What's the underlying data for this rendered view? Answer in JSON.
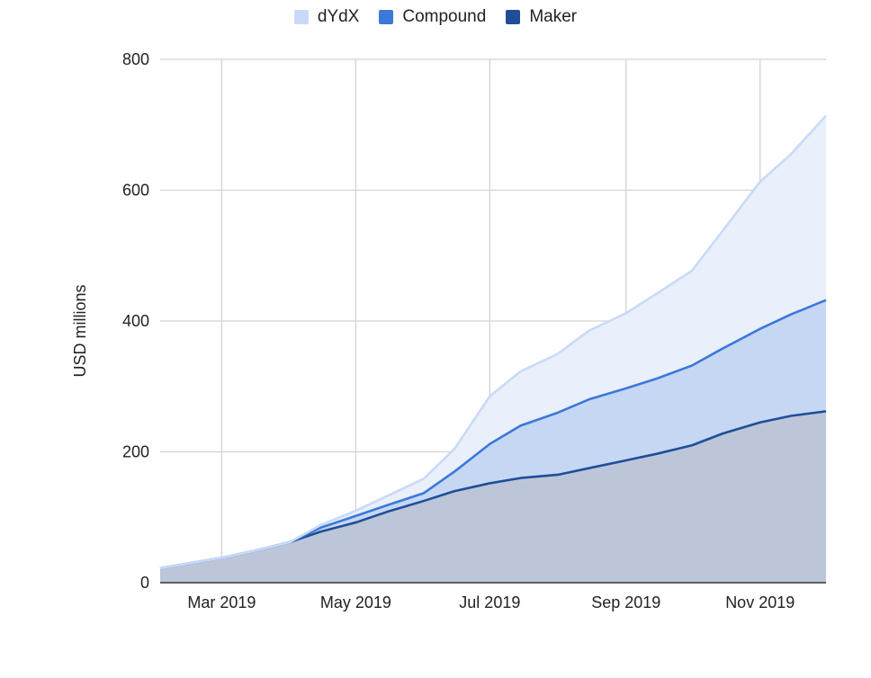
{
  "chart_data": {
    "type": "area",
    "stacked": true,
    "title": "",
    "xlabel": "",
    "ylabel": "USD millions",
    "ylim": [
      0,
      800
    ],
    "yticks": [
      0,
      200,
      400,
      600,
      800
    ],
    "grid": true,
    "legend_position": "top-center",
    "x_ticks": [
      {
        "label": "Mar 2019",
        "date": "2019-03-01"
      },
      {
        "label": "May 2019",
        "date": "2019-05-01"
      },
      {
        "label": "Jul 2019",
        "date": "2019-07-01"
      },
      {
        "label": "Sep 2019",
        "date": "2019-09-01"
      },
      {
        "label": "Nov 2019",
        "date": "2019-11-01"
      }
    ],
    "x_range": [
      "2019-02-01",
      "2019-12-01"
    ],
    "x": [
      "2019-02-01",
      "2019-02-15",
      "2019-03-01",
      "2019-03-15",
      "2019-04-01",
      "2019-04-15",
      "2019-05-01",
      "2019-05-15",
      "2019-06-01",
      "2019-06-15",
      "2019-07-01",
      "2019-07-15",
      "2019-08-01",
      "2019-08-15",
      "2019-09-01",
      "2019-09-15",
      "2019-10-01",
      "2019-10-15",
      "2019-11-01",
      "2019-11-15",
      "2019-12-01"
    ],
    "series": [
      {
        "name": "Maker",
        "color": "#1f4e99",
        "fill": "#bcc6d8",
        "values": [
          22,
          30,
          38,
          48,
          62,
          78,
          92,
          108,
          125,
          140,
          152,
          160,
          165,
          175,
          187,
          197,
          210,
          228,
          245,
          255,
          262
        ]
      },
      {
        "name": "Compound",
        "color": "#3c78d8",
        "fill": "#c5d7f3",
        "values": [
          0,
          0,
          0,
          0,
          0,
          6,
          10,
          10,
          12,
          30,
          60,
          80,
          95,
          105,
          110,
          115,
          122,
          130,
          143,
          155,
          170
        ]
      },
      {
        "name": "dYdX",
        "color": "#c9daf8",
        "fill": "#e9effb",
        "values": [
          0,
          0,
          0,
          0,
          0,
          4,
          8,
          14,
          22,
          35,
          73,
          83,
          90,
          105,
          115,
          130,
          145,
          180,
          225,
          245,
          282
        ]
      }
    ]
  },
  "legend": {
    "items": [
      {
        "label": "dYdX",
        "color": "#c9daf8"
      },
      {
        "label": "Compound",
        "color": "#3c78d8"
      },
      {
        "label": "Maker",
        "color": "#1f4e99"
      }
    ]
  }
}
